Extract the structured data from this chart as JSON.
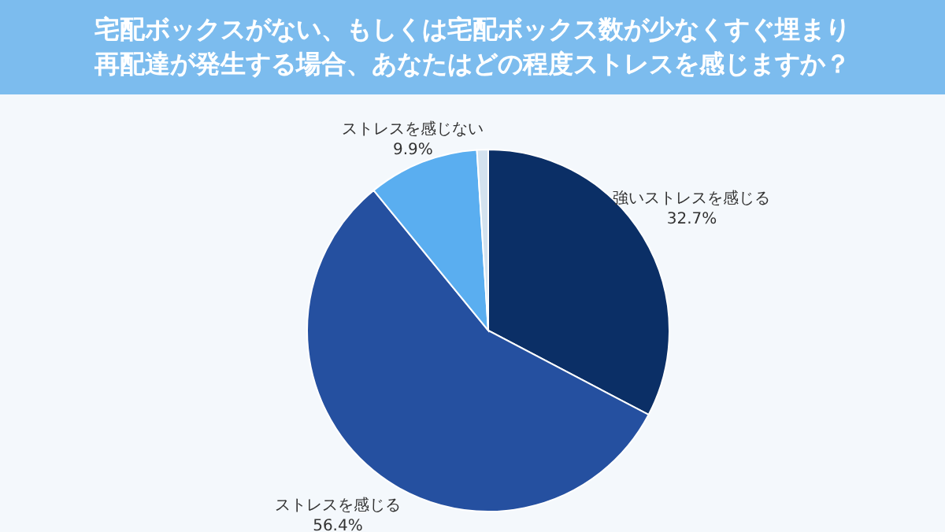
{
  "chart_data": {
    "type": "pie",
    "title": "宅配ボックスがない、もしくは宅配ボックス数が少なくすぐ埋まり再配達が発生する場合、あなたはどの程度ストレスを感じますか？",
    "categories": [
      "強いストレスを感じる",
      "ストレスを感じる",
      "ストレスを感じない",
      null
    ],
    "values": [
      32.7,
      56.4,
      9.9,
      1.0
    ],
    "value_labels": [
      "32.7%",
      "56.4%",
      "9.9%",
      null
    ],
    "colors": [
      "#0b2f66",
      "#2550a0",
      "#5aaef0",
      "#d3e2ef"
    ]
  }
}
